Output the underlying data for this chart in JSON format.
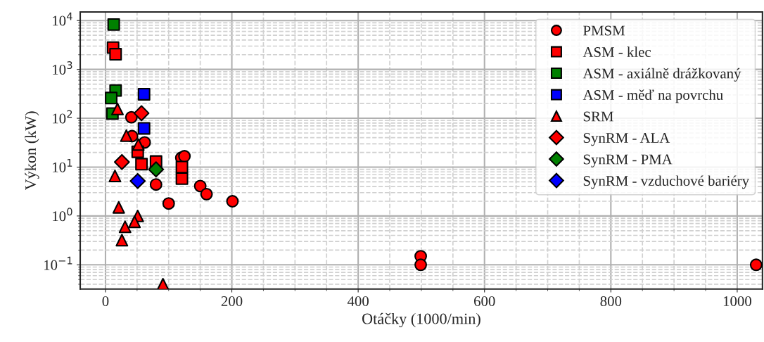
{
  "chart_data": {
    "type": "scatter",
    "xlabel": "Otáčky (1000/min)",
    "ylabel": "Výkon (kW)",
    "log": "y",
    "grid": true,
    "legend": "top right",
    "xlim": [
      -40,
      1040
    ],
    "xticks": [
      0,
      200,
      400,
      600,
      800,
      1000
    ],
    "ylim": [
      0.032,
      15000
    ],
    "yticks": [
      {
        "value": 0.1,
        "label": "10$^{−1}$"
      },
      {
        "value": 1,
        "label": "10$^{0}$"
      },
      {
        "value": 10,
        "label": "10$^{1}$"
      },
      {
        "value": 100,
        "label": "10$^{2}$"
      },
      {
        "value": 1000,
        "label": "10$^{3}$"
      },
      {
        "value": 10000,
        "label": "10$^{4}$"
      }
    ],
    "series": [
      {
        "name": "PMSM",
        "color": "#ff0000",
        "marker": "circle",
        "x": [
          41,
          42,
          62,
          120,
          125,
          80,
          100,
          150,
          160,
          201,
          499,
          499,
          1030
        ],
        "values": [
          105,
          43,
          32,
          15.5,
          16.7,
          4.4,
          1.8,
          4.1,
          2.8,
          2.0,
          0.15,
          0.1,
          0.1
        ]
      },
      {
        "name": "ASM - klec",
        "color": "#ff0000",
        "marker": "square",
        "x": [
          12,
          16,
          51,
          57,
          80,
          121,
          121
        ],
        "values": [
          2800,
          2050,
          20.6,
          11.5,
          13,
          10,
          5.8
        ]
      },
      {
        "name": "ASM - axiálně drážkovaný",
        "color": "#008000",
        "marker": "square",
        "x": [
          13,
          16,
          9,
          11
        ],
        "values": [
          8300,
          370,
          260,
          125
        ]
      },
      {
        "name": "ASM - měď na povrchu",
        "color": "#0000ff",
        "marker": "square",
        "x": [
          61,
          61
        ],
        "values": [
          310,
          62
        ]
      },
      {
        "name": "SRM",
        "color": "#ff0000",
        "marker": "triangle",
        "x": [
          19,
          33,
          52,
          15,
          21,
          51,
          46,
          31,
          26,
          91
        ],
        "values": [
          155,
          44,
          29,
          6.6,
          1.5,
          1.0,
          0.76,
          0.6,
          0.32,
          0.04
        ]
      },
      {
        "name": "SynRM - ALA",
        "color": "#ff0000",
        "marker": "diamond",
        "x": [
          57,
          26
        ],
        "values": [
          127,
          12.7
        ]
      },
      {
        "name": "SynRM - PMA",
        "color": "#008000",
        "marker": "diamond",
        "x": [
          80
        ],
        "values": [
          9
        ]
      },
      {
        "name": "SynRM - vzduchové bariéry",
        "color": "#0000ff",
        "marker": "diamond",
        "x": [
          51
        ],
        "values": [
          5.2
        ]
      }
    ]
  }
}
